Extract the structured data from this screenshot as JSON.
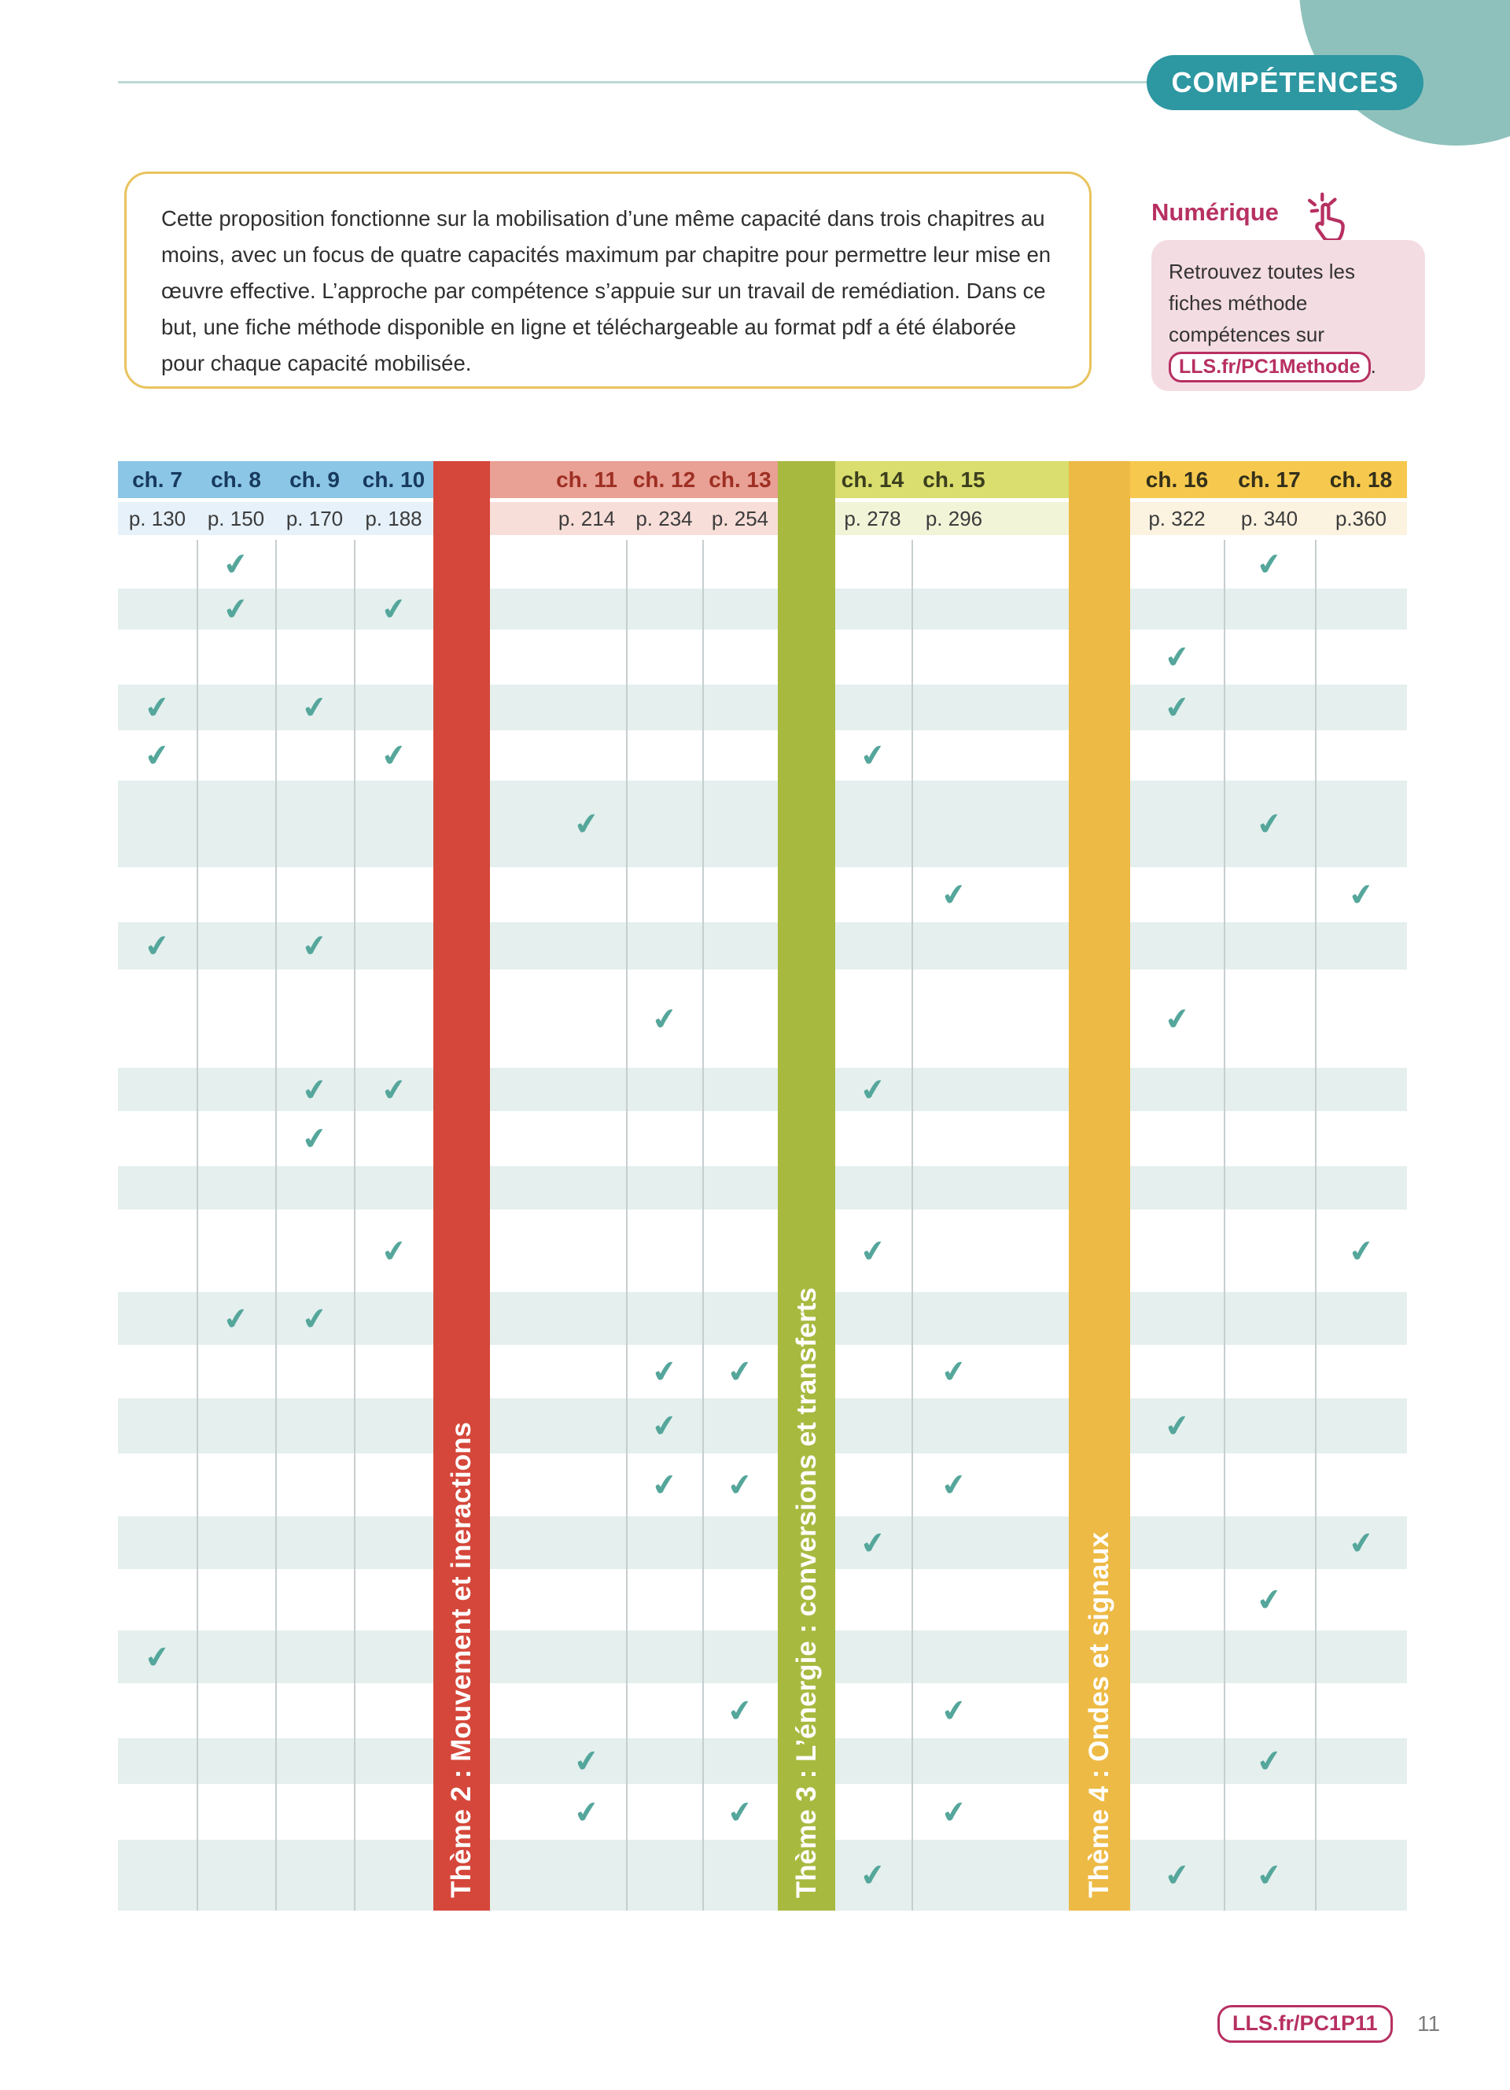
{
  "header": {
    "badge": "COMPÉTENCES"
  },
  "intro": {
    "text": "Cette proposition fonctionne sur la mobilisation d’une même capacité dans trois chapitres au moins, avec un focus de quatre capacités maximum par chapitre pour permettre leur mise en œuvre effective. L’approche par compétence s’appuie sur un travail de remédiation. Dans ce but, une fiche méthode disponible en ligne et téléchargeable au format pdf a été élaborée pour chaque capacité mobilisée."
  },
  "numerique": {
    "label": "Numérique",
    "icon": "click-hand-icon",
    "text": "Retrouvez toutes les fiches méthode compétences sur",
    "link": "LLS.fr/PC1Methode",
    "suffix": "."
  },
  "footer": {
    "link": "LLS.fr/PC1P11",
    "page_number": "11"
  },
  "colors": {
    "badge_teal": "#2d97a2",
    "circle_teal": "#8fc1bc",
    "intro_border_gold": "#e9c35e",
    "crimson": "#b73062",
    "pink_box": "#f4dce3",
    "check_teal": "#55a69b",
    "stripe_teal": "#e4efee",
    "theme2_red": "#d5473a",
    "theme3_green": "#a8b93f",
    "theme4_gold": "#edba45",
    "blue_header": "#8cc6e6",
    "blue_header_text": "#173a5e",
    "blue_pale": "#e6f1fa",
    "salmon_header": "#e9a095",
    "salmon_header_text": "#9e2f23",
    "salmon_pale": "#f8ded9",
    "yellowgreen_header": "#d9de6e",
    "yellowgreen_header_text": "#3c3f1d",
    "yellowgreen_pale": "#f2f4d8",
    "gold_header": "#f6c94e",
    "gold_header_text": "#332f1a",
    "gold_pale": "#fbf2e0"
  },
  "table": {
    "groups": [
      {
        "name": "blue",
        "chapters": [
          {
            "id": "ch7",
            "label": "ch. 7",
            "page": "p. 130"
          },
          {
            "id": "ch8",
            "label": "ch. 8",
            "page": "p. 150"
          },
          {
            "id": "ch9",
            "label": "ch. 9",
            "page": "p. 170"
          },
          {
            "id": "ch10",
            "label": "ch. 10",
            "page": "p. 188"
          }
        ]
      },
      {
        "name": "salmon",
        "chapters": [
          {
            "id": "ch11",
            "label": "ch. 11",
            "page": "p. 214"
          },
          {
            "id": "ch12",
            "label": "ch. 12",
            "page": "p. 234"
          },
          {
            "id": "ch13",
            "label": "ch. 13",
            "page": "p. 254"
          }
        ]
      },
      {
        "name": "yellowgreen",
        "chapters": [
          {
            "id": "ch14",
            "label": "ch. 14",
            "page": "p. 278"
          },
          {
            "id": "ch15",
            "label": "ch. 15",
            "page": "p. 296"
          }
        ]
      },
      {
        "name": "gold",
        "chapters": [
          {
            "id": "ch16",
            "label": "ch. 16",
            "page": "p. 322"
          },
          {
            "id": "ch17",
            "label": "ch. 17",
            "page": "p. 340"
          },
          {
            "id": "ch18",
            "label": "ch. 18",
            "page": "p.360"
          }
        ]
      }
    ],
    "themes": [
      {
        "id": "theme2",
        "label": "Thème 2 : Mouvement et ineractions"
      },
      {
        "id": "theme3",
        "label": "Thème 3 : L’énergie : conversions et transferts"
      },
      {
        "id": "theme4",
        "label": "Thème 4 : Ondes et signaux"
      }
    ],
    "check_glyph": "✔",
    "rows": [
      {
        "h": 62,
        "checks": [
          "ch8",
          "ch17"
        ]
      },
      {
        "h": 52,
        "checks": [
          "ch8",
          "ch10"
        ]
      },
      {
        "h": 70,
        "checks": [
          "ch16"
        ]
      },
      {
        "h": 58,
        "checks": [
          "ch7",
          "ch9",
          "ch16"
        ]
      },
      {
        "h": 64,
        "checks": [
          "ch7",
          "ch10",
          "ch14"
        ]
      },
      {
        "h": 110,
        "checks": [
          "ch11",
          "ch17"
        ]
      },
      {
        "h": 70,
        "checks": [
          "ch15",
          "ch18"
        ]
      },
      {
        "h": 60,
        "checks": [
          "ch7",
          "ch9"
        ]
      },
      {
        "h": 125,
        "checks": [
          "ch12",
          "ch16"
        ]
      },
      {
        "h": 55,
        "checks": [
          "ch9",
          "ch10",
          "ch14"
        ]
      },
      {
        "h": 70,
        "checks": [
          "ch9"
        ]
      },
      {
        "h": 55,
        "checks": []
      },
      {
        "h": 105,
        "checks": [
          "ch10",
          "ch14",
          "ch18"
        ]
      },
      {
        "h": 67,
        "checks": [
          "ch8",
          "ch9"
        ]
      },
      {
        "h": 68,
        "checks": [
          "ch12",
          "ch13",
          "ch15"
        ]
      },
      {
        "h": 70,
        "checks": [
          "ch12",
          "ch16"
        ]
      },
      {
        "h": 80,
        "checks": [
          "ch12",
          "ch13",
          "ch15"
        ]
      },
      {
        "h": 67,
        "checks": [
          "ch14",
          "ch18"
        ]
      },
      {
        "h": 78,
        "checks": [
          "ch17"
        ]
      },
      {
        "h": 67,
        "checks": [
          "ch7"
        ]
      },
      {
        "h": 70,
        "checks": [
          "ch13",
          "ch15"
        ]
      },
      {
        "h": 58,
        "checks": [
          "ch11",
          "ch17"
        ]
      },
      {
        "h": 71,
        "checks": [
          "ch11",
          "ch13",
          "ch15"
        ]
      },
      {
        "h": 90,
        "checks": [
          "ch14",
          "ch16",
          "ch17"
        ]
      }
    ]
  }
}
